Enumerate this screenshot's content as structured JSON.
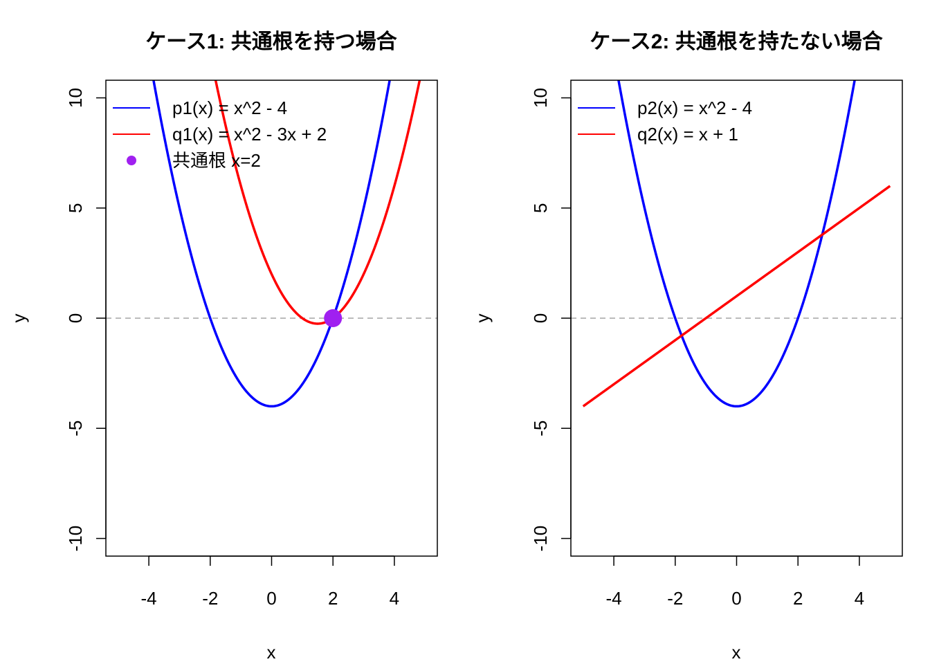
{
  "chart_data": [
    {
      "type": "line",
      "title": "ケース1: 共通根を持つ場合",
      "xlabel": "x",
      "ylabel": "y",
      "xlim": [
        -5.4,
        5.4
      ],
      "ylim": [
        -10.8,
        10.8
      ],
      "x_ticks": [
        -4,
        -2,
        0,
        2,
        4
      ],
      "x_tick_labels": [
        "-4",
        "-2",
        "0",
        "2",
        "4"
      ],
      "y_ticks": [
        -10,
        -5,
        0,
        5,
        10
      ],
      "y_tick_labels": [
        "-10",
        "-5",
        "0",
        "5",
        "10"
      ],
      "reference_line": {
        "y": 0,
        "color": "#bbbbbb",
        "style": "dashed"
      },
      "series": [
        {
          "name": "p1(x) = x^2 - 4",
          "color": "#0000ff",
          "coefficients": [
            1,
            0,
            -4
          ],
          "x_range": [
            -5,
            5
          ]
        },
        {
          "name": "q1(x) = x^2 - 3x + 2",
          "color": "#ff0000",
          "coefficients": [
            1,
            -3,
            2
          ],
          "x_range": [
            -5,
            5
          ]
        }
      ],
      "points": [
        {
          "name": "共通根 x=2",
          "x": 2,
          "y": 0,
          "color": "#a020f0"
        }
      ],
      "legend": "top-left"
    },
    {
      "type": "line",
      "title": "ケース2: 共通根を持たない場合",
      "xlabel": "x",
      "ylabel": "y",
      "xlim": [
        -5.4,
        5.4
      ],
      "ylim": [
        -10.8,
        10.8
      ],
      "x_ticks": [
        -4,
        -2,
        0,
        2,
        4
      ],
      "x_tick_labels": [
        "-4",
        "-2",
        "0",
        "2",
        "4"
      ],
      "y_ticks": [
        -10,
        -5,
        0,
        5,
        10
      ],
      "y_tick_labels": [
        "-10",
        "-5",
        "0",
        "5",
        "10"
      ],
      "reference_line": {
        "y": 0,
        "color": "#bbbbbb",
        "style": "dashed"
      },
      "series": [
        {
          "name": "p2(x) = x^2 - 4",
          "color": "#0000ff",
          "coefficients": [
            1,
            0,
            -4
          ],
          "x_range": [
            -5,
            5
          ]
        },
        {
          "name": "q2(x) = x + 1",
          "color": "#ff0000",
          "coefficients": [
            0,
            1,
            1
          ],
          "x_range": [
            -5,
            5
          ]
        }
      ],
      "points": [],
      "legend": "top-left"
    }
  ]
}
